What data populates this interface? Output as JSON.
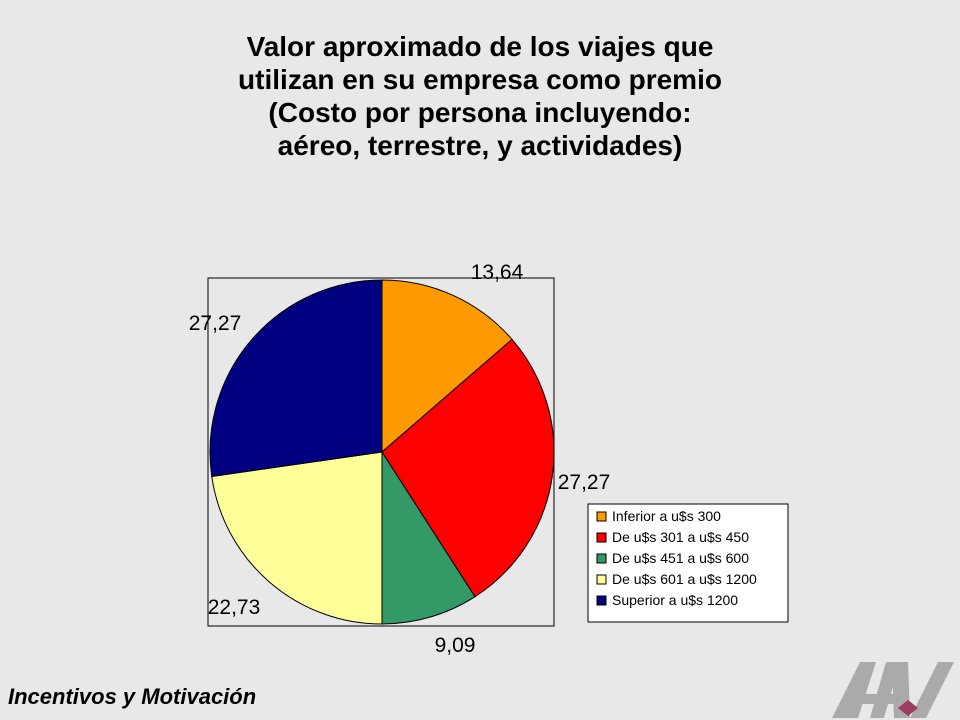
{
  "chart_data": {
    "type": "pie",
    "title_lines": [
      "Valor aproximado de los viajes que",
      "utilizan en su empresa como premio",
      "(Costo por persona incluyendo:",
      "aéreo, terrestre, y actividades)"
    ],
    "categories": [
      "Inferior a u$s 300",
      "De u$s 301 a u$s 450",
      "De u$s 451 a u$s 600",
      "De u$s 601 a u$s 1200",
      "Superior a u$s 1200"
    ],
    "values": [
      13.64,
      27.27,
      9.09,
      22.73,
      27.27
    ],
    "data_labels": [
      "13,64",
      "27,27",
      "9,09",
      "22,73",
      "27,27"
    ],
    "colors": [
      "#ff9900",
      "#ff0000",
      "#339966",
      "#ffff99",
      "#000080"
    ],
    "legend_position": "right"
  },
  "footer": {
    "text": "Incentivos y  Motivación"
  },
  "logo": {
    "icon": "av-logo-icon"
  }
}
